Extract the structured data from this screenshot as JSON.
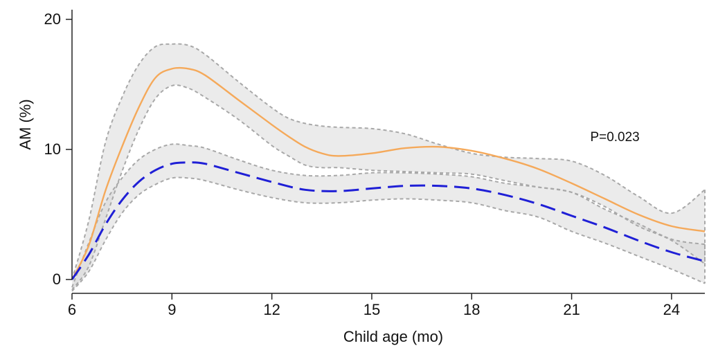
{
  "chart_data": {
    "type": "line",
    "title": "",
    "xlabel": "Child age (mo)",
    "ylabel": "AM (%)",
    "xlim": [
      6,
      25
    ],
    "ylim": [
      0,
      20
    ],
    "x_ticks": [
      6,
      9,
      12,
      15,
      18,
      21,
      24
    ],
    "y_ticks": [
      0,
      10,
      20
    ],
    "grid": false,
    "annotations": [
      {
        "text": "P=0.023",
        "x": 22.3,
        "y": 11.0
      }
    ],
    "series": [
      {
        "color": "#f5a95a",
        "style": "solid",
        "x": [
          6,
          6.5,
          7,
          7.5,
          8,
          8.5,
          9,
          9.5,
          10,
          11,
          12,
          12.5,
          13,
          13.5,
          14,
          15,
          16,
          17,
          18,
          19,
          20,
          21,
          22,
          23,
          24,
          25
        ],
        "y": [
          0,
          2.6,
          6.8,
          10.2,
          13.2,
          15.5,
          16.2,
          16.2,
          15.7,
          13.8,
          11.9,
          11.0,
          10.2,
          9.7,
          9.5,
          9.7,
          10.1,
          10.2,
          9.9,
          9.3,
          8.5,
          7.4,
          6.2,
          5.0,
          4.1,
          3.7
        ],
        "ci_upper": [
          0,
          4.5,
          10.5,
          14.0,
          16.5,
          17.9,
          18.1,
          18.0,
          17.3,
          15.2,
          13.2,
          12.4,
          12.0,
          11.8,
          11.7,
          11.6,
          11.2,
          10.4,
          9.7,
          9.4,
          9.3,
          9.1,
          8.0,
          6.4,
          5.1,
          6.9
        ],
        "ci_lower": [
          -0.8,
          1.0,
          4.6,
          8.3,
          11.5,
          13.9,
          14.9,
          14.7,
          14.0,
          12.3,
          10.3,
          9.5,
          8.8,
          8.6,
          8.6,
          8.4,
          8.3,
          8.2,
          8.1,
          7.6,
          7.1,
          6.7,
          5.6,
          4.1,
          3.0,
          1.2
        ]
      },
      {
        "color": "#1f1fd6",
        "style": "dashed",
        "x": [
          6,
          6.5,
          7,
          7.5,
          8,
          8.5,
          9,
          9.5,
          10,
          11,
          12,
          13,
          14,
          15,
          16,
          17,
          18,
          19,
          20,
          21,
          22,
          23,
          24,
          25
        ],
        "y": [
          0,
          1.9,
          4.2,
          6.1,
          7.5,
          8.4,
          8.9,
          9.0,
          8.9,
          8.2,
          7.5,
          6.9,
          6.8,
          7.0,
          7.2,
          7.2,
          7.0,
          6.5,
          5.8,
          4.9,
          4.0,
          3.0,
          2.1,
          1.4
        ],
        "ci_upper": [
          -0.6,
          2.8,
          5.9,
          7.8,
          9.2,
          10.0,
          10.4,
          10.3,
          10.1,
          9.2,
          8.4,
          8.0,
          8.0,
          8.2,
          8.2,
          8.1,
          7.9,
          7.4,
          7.1,
          6.7,
          5.4,
          4.3,
          3.1,
          2.7
        ],
        "ci_lower": [
          -0.9,
          0.6,
          3.0,
          5.1,
          6.5,
          7.3,
          7.8,
          7.8,
          7.6,
          6.9,
          6.3,
          5.9,
          5.9,
          6.1,
          6.2,
          6.1,
          5.9,
          5.3,
          4.8,
          3.7,
          2.8,
          1.8,
          0.8,
          -0.3
        ]
      }
    ]
  }
}
